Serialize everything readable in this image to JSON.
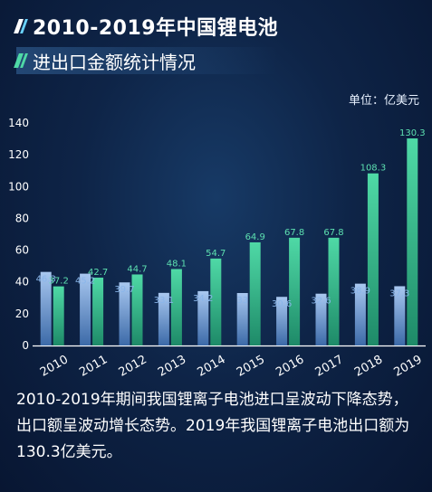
{
  "title": {
    "line1": "2010-2019年中国锂电池",
    "line2": "进出口金额统计情况"
  },
  "unit": "单位：亿美元",
  "caption": "2010-2019年期间我国锂离子电池进口呈波动下降态势，出口额呈波动增长态势。2019年我国锂离子电池出口额为130.3亿美元。",
  "colors": {
    "import_top": "#a9c8f0",
    "import_bottom": "#3c6aa8",
    "export_top": "#4fd9a6",
    "export_bottom": "#1e8a68",
    "import_label": "#8ab6ea",
    "export_label": "#5de0b0"
  },
  "chart_data": {
    "type": "bar",
    "categories": [
      "2010",
      "2011",
      "2012",
      "2013",
      "2014",
      "2015",
      "2016",
      "2017",
      "2018",
      "2019"
    ],
    "series": [
      {
        "values": [
          46.3,
          45.2,
          39.7,
          33.1,
          34.2,
          33,
          30.6,
          32.6,
          38.9,
          37.3
        ]
      },
      {
        "values": [
          37.2,
          42.7,
          44.7,
          48.1,
          54.7,
          64.9,
          67.8,
          67.8,
          108.3,
          130.3
        ]
      }
    ],
    "yticks": [
      0,
      20,
      40,
      60,
      80,
      100,
      120,
      140
    ],
    "ylim": [
      0,
      140
    ],
    "grid": false,
    "legend": "none"
  }
}
